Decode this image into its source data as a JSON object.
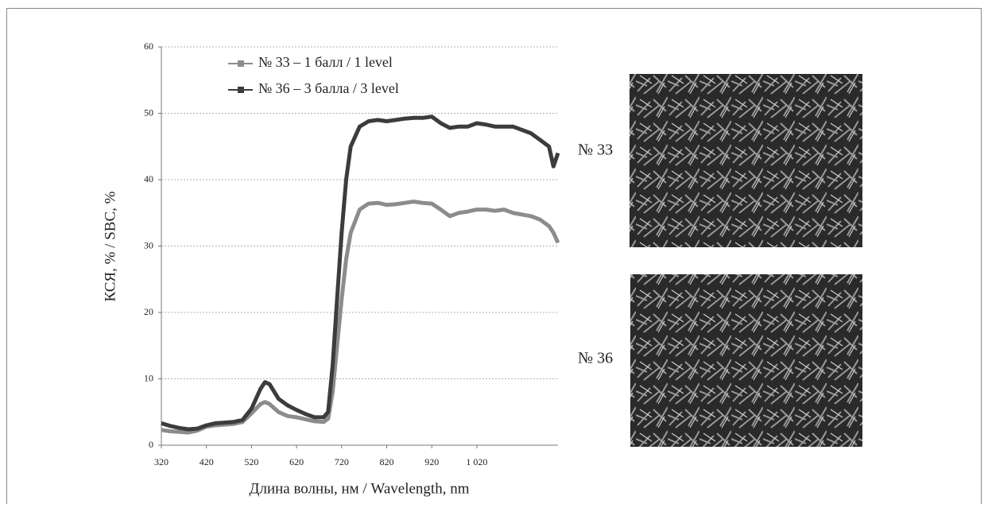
{
  "chart_data": {
    "type": "line",
    "x_label": "Длина волны, нм / Wavelength, nm",
    "y_label": "КСЯ, % / SBC, %",
    "x": [
      320,
      340,
      360,
      380,
      400,
      420,
      440,
      460,
      480,
      500,
      520,
      540,
      550,
      560,
      580,
      600,
      620,
      640,
      660,
      680,
      690,
      700,
      710,
      720,
      730,
      740,
      760,
      780,
      800,
      820,
      840,
      860,
      880,
      900,
      920,
      940,
      960,
      980,
      1000,
      1020,
      1040,
      1060,
      1080,
      1100,
      1140,
      1160,
      1180,
      1190,
      1200
    ],
    "series": [
      {
        "name": "№ 33 – 1 балл / 1 level",
        "color": "#8c8c8c",
        "values": [
          2.3,
          2.1,
          2.0,
          1.9,
          2.2,
          2.8,
          3.0,
          3.1,
          3.2,
          3.5,
          4.8,
          6.2,
          6.5,
          6.2,
          5.0,
          4.4,
          4.2,
          3.9,
          3.6,
          3.5,
          4,
          8,
          15,
          22,
          28,
          32,
          35.5,
          36.4,
          36.5,
          36.2,
          36.3,
          36.5,
          36.7,
          36.5,
          36.4,
          35.5,
          34.5,
          35,
          35.2,
          35.5,
          35.5,
          35.3,
          35.5,
          35,
          34.5,
          34,
          33,
          32,
          30.5
        ]
      },
      {
        "name": "№ 36 – 3 балла / 3 level",
        "color": "#3c3c3c",
        "values": [
          3.3,
          2.9,
          2.6,
          2.4,
          2.5,
          3.0,
          3.3,
          3.4,
          3.5,
          3.8,
          5.5,
          8.5,
          9.5,
          9.2,
          7.0,
          6.0,
          5.3,
          4.7,
          4.2,
          4.2,
          5,
          12,
          22,
          32,
          40,
          45,
          48,
          48.8,
          49,
          48.8,
          49,
          49.2,
          49.3,
          49.3,
          49.5,
          48.5,
          47.8,
          48,
          48,
          48.5,
          48.3,
          48,
          48,
          48,
          47,
          46,
          45,
          42,
          44
        ]
      }
    ],
    "xlim": [
      320,
      1200
    ],
    "xticks": [
      320,
      420,
      520,
      620,
      720,
      820,
      920,
      {
        "value": 1020,
        "label": "1 020"
      }
    ],
    "ylim": [
      0,
      60
    ],
    "yticks": [
      0,
      10,
      20,
      30,
      40,
      50,
      60
    ],
    "grid": true,
    "legend": "top-left"
  },
  "photos": [
    {
      "label": "№ 33"
    },
    {
      "label": "№ 36"
    }
  ]
}
